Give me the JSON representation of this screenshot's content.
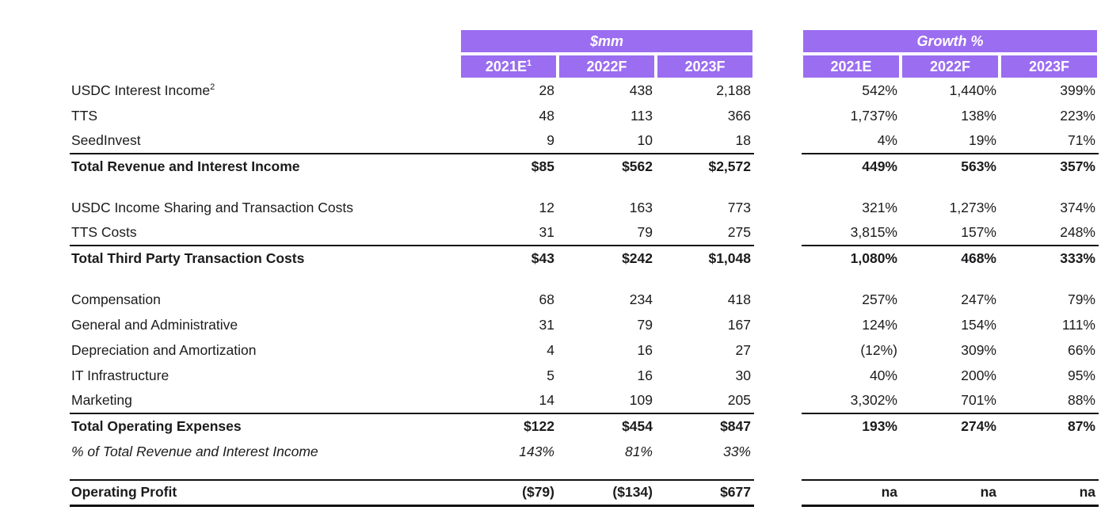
{
  "chart_data": {
    "type": "table",
    "units_group": {
      "label": "$mm",
      "columns": [
        "2021E",
        "2022F",
        "2023F"
      ],
      "first_col_footnote": "1"
    },
    "growth_group": {
      "label": "Growth %",
      "columns": [
        "2021E",
        "2022F",
        "2023F"
      ]
    },
    "rows": [
      {
        "label": "USDC Interest Income",
        "footnote": "2",
        "mm": [
          "28",
          "438",
          "2,188"
        ],
        "growth": [
          "542%",
          "1,440%",
          "399%"
        ]
      },
      {
        "label": "TTS",
        "mm": [
          "48",
          "113",
          "366"
        ],
        "growth": [
          "1,737%",
          "138%",
          "223%"
        ]
      },
      {
        "label": "SeedInvest",
        "mm": [
          "9",
          "10",
          "18"
        ],
        "growth": [
          "4%",
          "19%",
          "71%"
        ]
      },
      {
        "label": "Total Revenue and Interest Income",
        "mm": [
          "$85",
          "$562",
          "$2,572"
        ],
        "growth": [
          "449%",
          "563%",
          "357%"
        ],
        "emphasis": "total"
      },
      {
        "label": "USDC Income Sharing and Transaction Costs",
        "mm": [
          "12",
          "163",
          "773"
        ],
        "growth": [
          "321%",
          "1,273%",
          "374%"
        ]
      },
      {
        "label": "TTS Costs",
        "mm": [
          "31",
          "79",
          "275"
        ],
        "growth": [
          "3,815%",
          "157%",
          "248%"
        ]
      },
      {
        "label": "Total Third Party Transaction Costs",
        "mm": [
          "$43",
          "$242",
          "$1,048"
        ],
        "growth": [
          "1,080%",
          "468%",
          "333%"
        ],
        "emphasis": "total"
      },
      {
        "label": "Compensation",
        "mm": [
          "68",
          "234",
          "418"
        ],
        "growth": [
          "257%",
          "247%",
          "79%"
        ]
      },
      {
        "label": "General and Administrative",
        "mm": [
          "31",
          "79",
          "167"
        ],
        "growth": [
          "124%",
          "154%",
          "111%"
        ]
      },
      {
        "label": "Depreciation and Amortization",
        "mm": [
          "4",
          "16",
          "27"
        ],
        "growth": [
          "(12%)",
          "309%",
          "66%"
        ]
      },
      {
        "label": "IT Infrastructure",
        "mm": [
          "5",
          "16",
          "30"
        ],
        "growth": [
          "40%",
          "200%",
          "95%"
        ]
      },
      {
        "label": "Marketing",
        "mm": [
          "14",
          "109",
          "205"
        ],
        "growth": [
          "3,302%",
          "701%",
          "88%"
        ]
      },
      {
        "label": "Total Operating Expenses",
        "mm": [
          "$122",
          "$454",
          "$847"
        ],
        "growth": [
          "193%",
          "274%",
          "87%"
        ],
        "emphasis": "total"
      },
      {
        "label": "% of Total Revenue and Interest Income",
        "mm": [
          "143%",
          "81%",
          "33%"
        ],
        "growth": [
          "",
          "",
          ""
        ],
        "emphasis": "italic"
      },
      {
        "label": "Operating Profit",
        "mm": [
          "($79)",
          "($134)",
          "$677"
        ],
        "growth": [
          "na",
          "na",
          "na"
        ],
        "emphasis": "total"
      }
    ]
  },
  "colors": {
    "header_purple": "#9b6df0",
    "header_text": "#ffffff",
    "body_text": "#1b1b1d",
    "rule_black": "#111111"
  }
}
